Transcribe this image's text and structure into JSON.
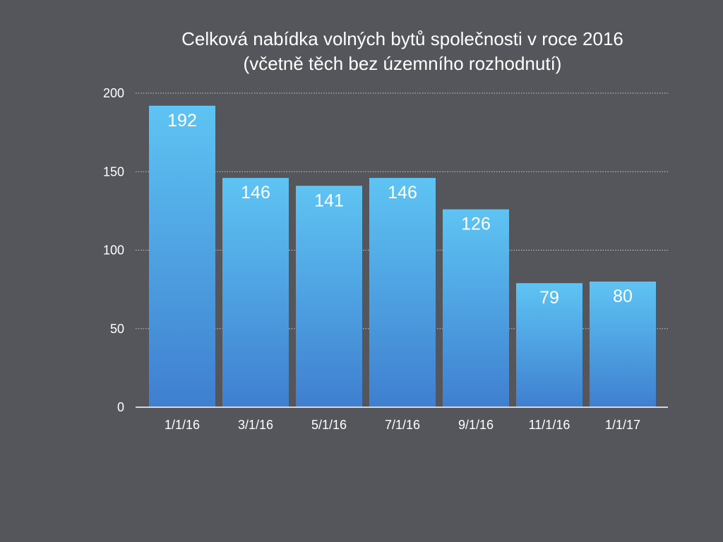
{
  "chart_data": {
    "type": "bar",
    "title": "Celková nabídka volných bytů společnosti v roce 2016",
    "subtitle": "(včetně těch bez územního rozhodnutí)",
    "categories": [
      "1/1/16",
      "3/1/16",
      "5/1/16",
      "7/1/16",
      "9/1/16",
      "11/1/16",
      "1/1/17"
    ],
    "values": [
      192,
      146,
      141,
      146,
      126,
      79,
      80
    ],
    "data_labels": [
      "192",
      "146",
      "141",
      "146",
      "126",
      "79",
      "80"
    ],
    "xlabel": "",
    "ylabel": "",
    "ylim": [
      0,
      200
    ],
    "y_ticks": [
      0,
      50,
      100,
      150,
      200
    ],
    "y_tick_labels": [
      "0",
      "50",
      "100",
      "150",
      "200"
    ],
    "grid": true,
    "legend": "none",
    "colors": {
      "background": "#54565b",
      "bar_top": "#5ec4f3",
      "bar_bottom": "#3f7fd0",
      "gridline": "#c8c8c8",
      "axis": "#ffffff",
      "text": "#ffffff"
    }
  }
}
